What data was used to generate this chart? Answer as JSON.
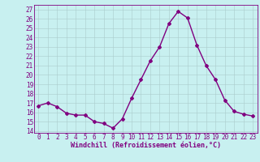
{
  "x": [
    0,
    1,
    2,
    3,
    4,
    5,
    6,
    7,
    8,
    9,
    10,
    11,
    12,
    13,
    14,
    15,
    16,
    17,
    18,
    19,
    20,
    21,
    22,
    23
  ],
  "y": [
    16.7,
    17.0,
    16.6,
    15.9,
    15.7,
    15.7,
    15.0,
    14.8,
    14.3,
    15.3,
    17.5,
    19.5,
    21.5,
    23.0,
    25.5,
    26.8,
    26.1,
    23.2,
    21.0,
    19.5,
    17.3,
    16.1,
    15.8,
    15.6
  ],
  "line_color": "#800080",
  "marker": "D",
  "marker_size": 2,
  "bg_color": "#c8f0f0",
  "grid_color": "#aacccc",
  "xlabel": "Windchill (Refroidissement éolien,°C)",
  "xlabel_fontsize": 6,
  "ylabel_ticks": [
    14,
    15,
    16,
    17,
    18,
    19,
    20,
    21,
    22,
    23,
    24,
    25,
    26,
    27
  ],
  "ylim": [
    13.8,
    27.5
  ],
  "xlim": [
    -0.5,
    23.5
  ],
  "tick_fontsize": 5.5,
  "line_width": 1.0
}
